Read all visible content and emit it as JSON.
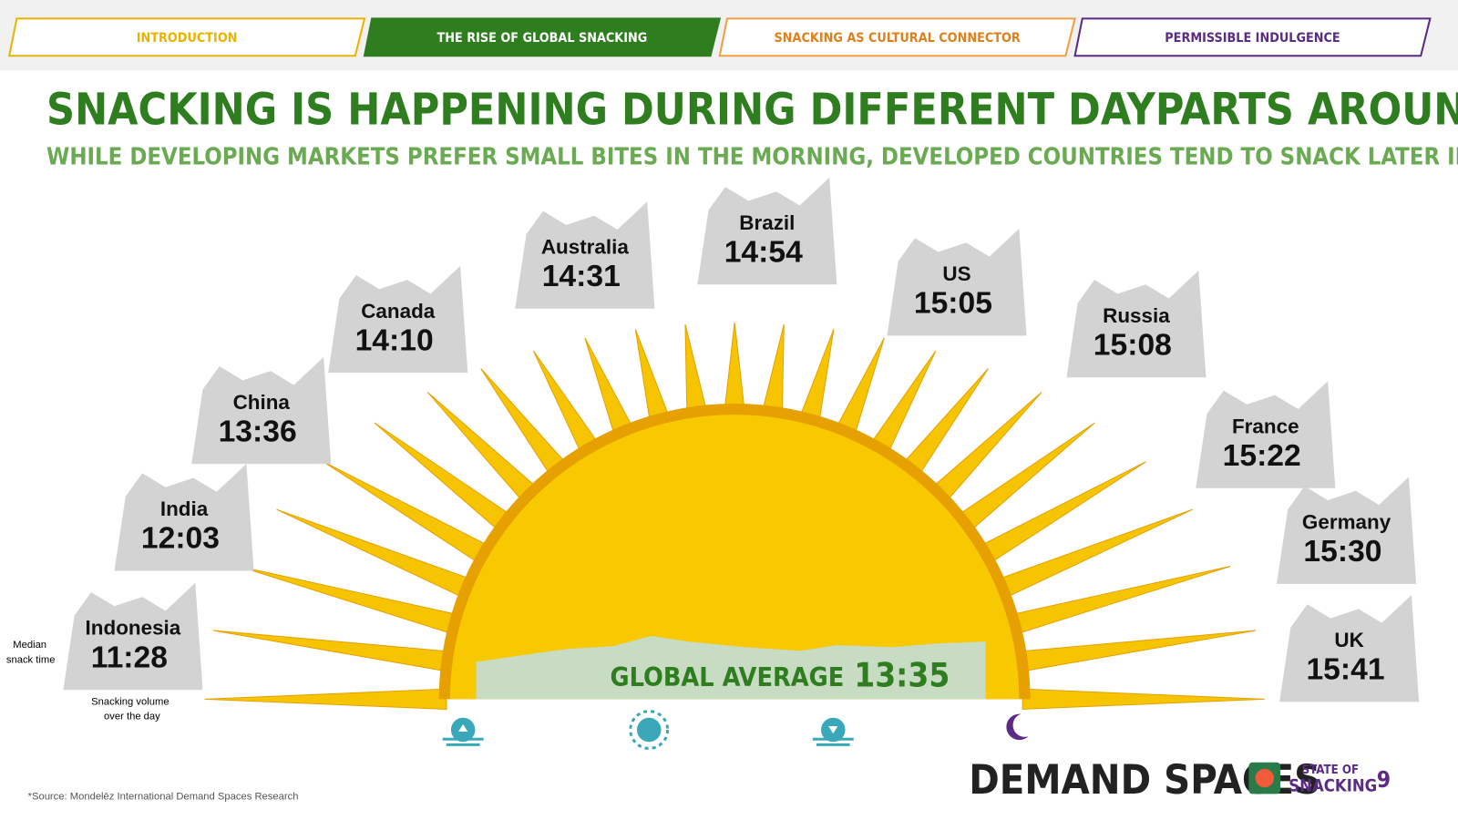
{
  "tabs": [
    "INTRODUCTION",
    "THE RISE OF GLOBAL SNACKING",
    "SNACKING AS CULTURAL CONNECTOR",
    "PERMISSIBLE INDULGENCE"
  ],
  "header": {
    "title": "SNACKING IS HAPPENING DURING DIFFERENT DAYPARTS AROUND THE WORLD",
    "subtitle": "WHILE DEVELOPING MARKETS PREFER SMALL BITES IN THE MORNING, DEVELOPED COUNTRIES TEND TO SNACK LATER IN THE DAY"
  },
  "countries": [
    {
      "name": "Indonesia",
      "time": "11:28"
    },
    {
      "name": "India",
      "time": "12:03"
    },
    {
      "name": "China",
      "time": "13:36"
    },
    {
      "name": "Canada",
      "time": "14:10"
    },
    {
      "name": "Australia",
      "time": "14:31"
    },
    {
      "name": "Brazil",
      "time": "14:54"
    },
    {
      "name": "US",
      "time": "15:05"
    },
    {
      "name": "Russia",
      "time": "15:08"
    },
    {
      "name": "France",
      "time": "15:22"
    },
    {
      "name": "Germany",
      "time": "15:30"
    },
    {
      "name": "UK",
      "time": "15:41"
    }
  ],
  "global_average": {
    "label": "GLOBAL AVERAGE",
    "time": "13:35"
  },
  "legend": {
    "median": [
      "Median",
      "snack time"
    ],
    "volume": [
      "Snacking volume",
      "over the day"
    ]
  },
  "footer": {
    "source": "*Source: Mondelēz International Demand Spaces Research",
    "brand": "DEMAND SPACES",
    "badge": [
      "STATE OF",
      "SNACKING"
    ],
    "page": "9"
  }
}
